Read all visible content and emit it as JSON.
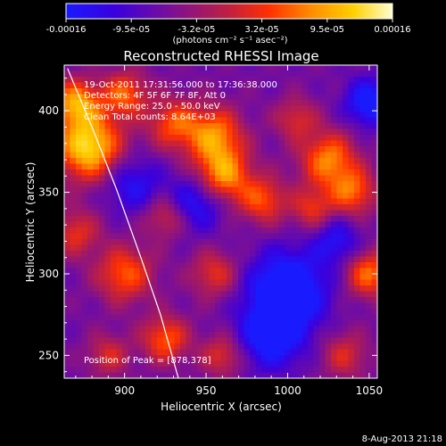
{
  "colorbar": {
    "ticks": [
      "-0.00016",
      "-9.5e-05",
      "-3.2e-05",
      "3.2e-05",
      "9.5e-05",
      "0.00016"
    ],
    "unit_label": "(photons cm⁻² s⁻¹ asec⁻²)",
    "colors": [
      "#1a1aff",
      "#4400cc",
      "#7a0f96",
      "#c02040",
      "#ff3000",
      "#ff8c00",
      "#ffd000",
      "#ffffd0"
    ]
  },
  "chart_data": {
    "type": "heatmap",
    "title": "Reconstructed RHESSI Image",
    "xlabel": "Heliocentric X (arcsec)",
    "ylabel": "Heliocentric Y (arcsec)",
    "xlim": [
      863,
      1055
    ],
    "ylim": [
      236,
      428
    ],
    "x_ticks": [
      900,
      950,
      1000,
      1050
    ],
    "y_ticks": [
      250,
      300,
      350,
      400
    ],
    "info_lines": [
      "19-Oct-2011 17:31:56.000 to 17:36:38.000",
      "Detectors: 4F 5F 6F 7F 8F, Att 0",
      "Energy Range: 25.0 - 50.0 keV",
      "Clean    Total counts: 8.64E+03"
    ],
    "peak_text": "Position of Peak = [878,378]",
    "peak": [
      878,
      378
    ],
    "limb_curve": [
      [
        865,
        426
      ],
      [
        880,
        390
      ],
      [
        895,
        352
      ],
      [
        910,
        310
      ],
      [
        922,
        275
      ],
      [
        933,
        236
      ]
    ],
    "blobs": [
      {
        "x": 878,
        "y": 378,
        "a": 1.0,
        "s": 14
      },
      {
        "x": 870,
        "y": 405,
        "a": 0.75,
        "s": 10
      },
      {
        "x": 900,
        "y": 410,
        "a": 0.6,
        "s": 10
      },
      {
        "x": 930,
        "y": 392,
        "a": 0.55,
        "s": 11
      },
      {
        "x": 955,
        "y": 385,
        "a": 0.7,
        "s": 12
      },
      {
        "x": 960,
        "y": 360,
        "a": 0.8,
        "s": 12
      },
      {
        "x": 985,
        "y": 345,
        "a": 0.55,
        "s": 10
      },
      {
        "x": 1005,
        "y": 395,
        "a": 0.4,
        "s": 9
      },
      {
        "x": 1025,
        "y": 370,
        "a": 0.7,
        "s": 12
      },
      {
        "x": 1040,
        "y": 350,
        "a": 0.6,
        "s": 10
      },
      {
        "x": 1015,
        "y": 340,
        "a": 0.45,
        "s": 9
      },
      {
        "x": 900,
        "y": 300,
        "a": 0.6,
        "s": 12
      },
      {
        "x": 870,
        "y": 325,
        "a": 0.45,
        "s": 10
      },
      {
        "x": 925,
        "y": 335,
        "a": 0.4,
        "s": 9
      },
      {
        "x": 955,
        "y": 300,
        "a": 0.45,
        "s": 10
      },
      {
        "x": 925,
        "y": 260,
        "a": 0.6,
        "s": 10
      },
      {
        "x": 890,
        "y": 250,
        "a": 0.4,
        "s": 9
      },
      {
        "x": 960,
        "y": 250,
        "a": 0.45,
        "s": 9
      },
      {
        "x": 1050,
        "y": 300,
        "a": 0.65,
        "s": 10
      },
      {
        "x": 1035,
        "y": 250,
        "a": 0.4,
        "s": 10
      },
      {
        "x": 1000,
        "y": 290,
        "a": -0.8,
        "s": 16
      },
      {
        "x": 990,
        "y": 262,
        "a": -0.6,
        "s": 14
      },
      {
        "x": 945,
        "y": 345,
        "a": -0.5,
        "s": 12
      },
      {
        "x": 1050,
        "y": 405,
        "a": -0.6,
        "s": 10
      },
      {
        "x": 905,
        "y": 355,
        "a": -0.4,
        "s": 12
      },
      {
        "x": 1030,
        "y": 320,
        "a": -0.4,
        "s": 10
      }
    ]
  },
  "timestamp": "8-Aug-2013 21:18"
}
